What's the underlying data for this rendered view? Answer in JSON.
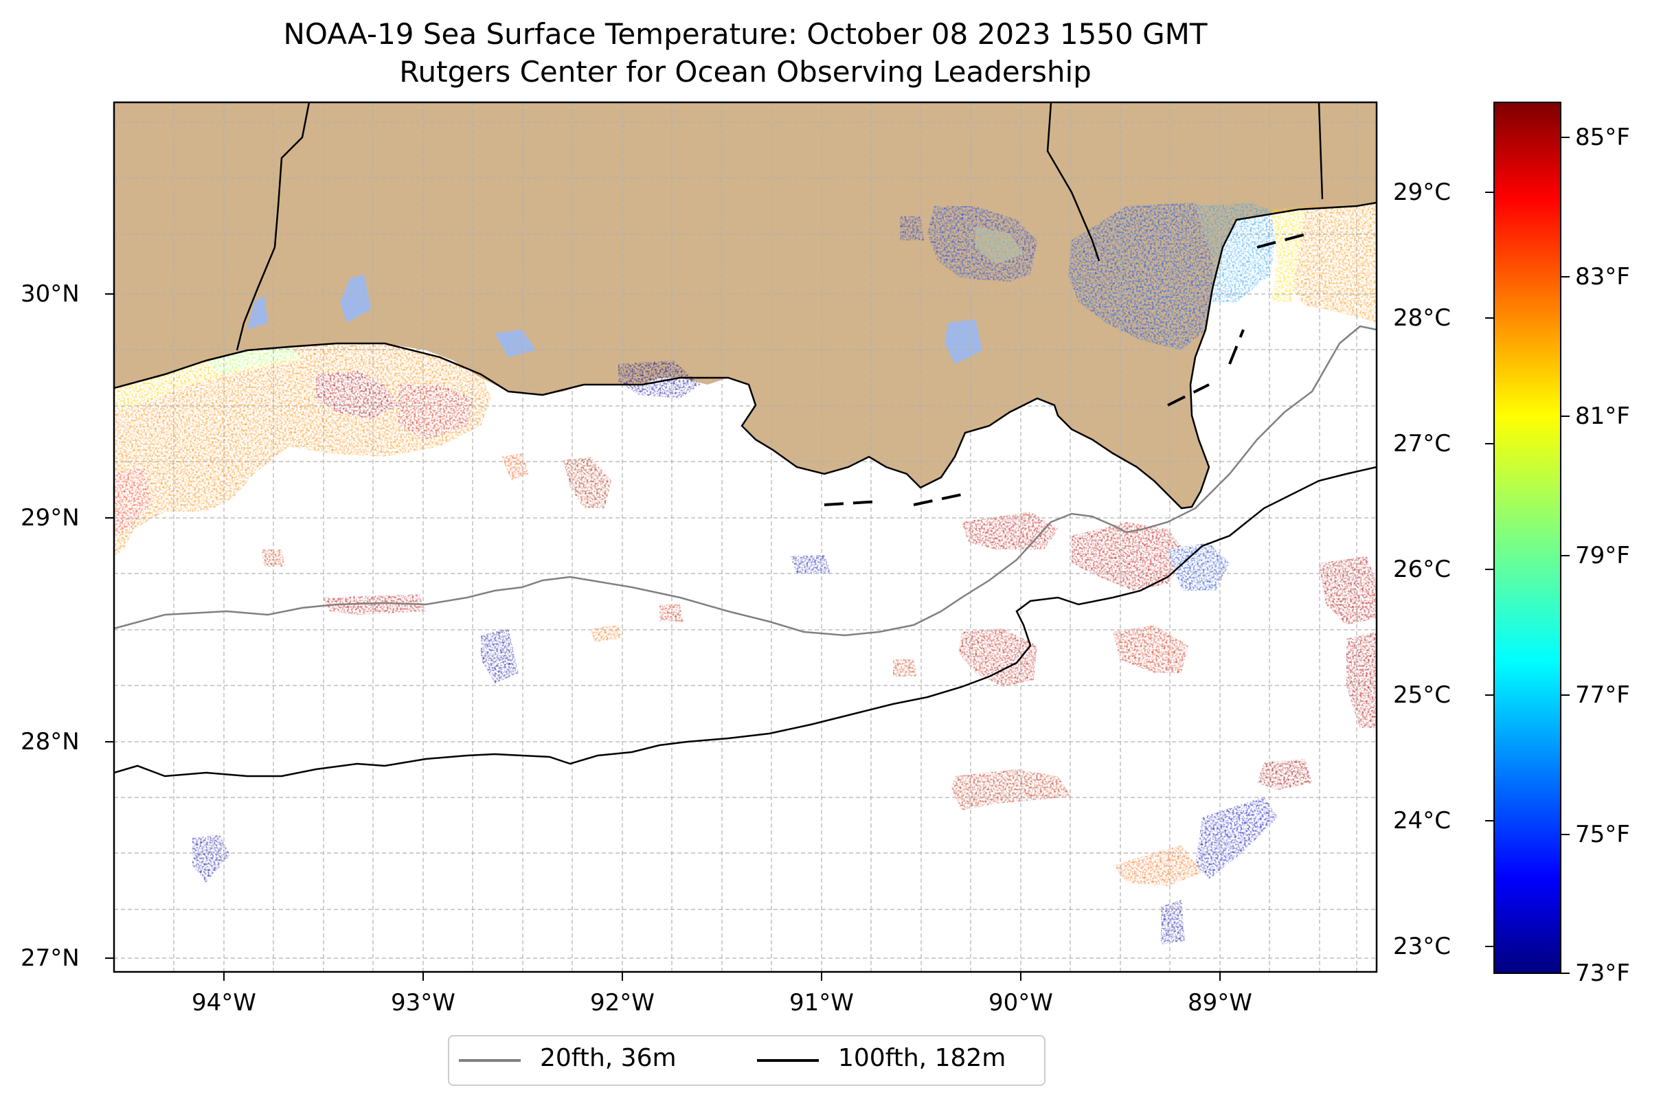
{
  "title_line1": "NOAA-19 Sea Surface Temperature: October 08 2023 1550 GMT",
  "title_line2": "Rutgers Center for Ocean Observing Leadership",
  "map": {
    "lon_ticks": [
      "94°W",
      "93°W",
      "92°W",
      "91°W",
      "90°W",
      "89°W"
    ],
    "lat_ticks": [
      "30°N",
      "29°N",
      "28°N",
      "27°N"
    ],
    "land_color": "#d1b48c",
    "missing_color": "#ffffff",
    "gridlines": true
  },
  "colorbar": {
    "colormap": "jet",
    "min_f": 73,
    "max_f": 85.5,
    "fahrenheit_ticks": [
      "85°F",
      "83°F",
      "81°F",
      "79°F",
      "77°F",
      "75°F",
      "73°F"
    ],
    "celsius_ticks": [
      "29°C",
      "28°C",
      "27°C",
      "26°C",
      "25°C",
      "24°C",
      "23°C"
    ]
  },
  "legend": {
    "items": [
      {
        "label": "20fth, 36m",
        "color": "#808080"
      },
      {
        "label": "100fth, 182m",
        "color": "#000000"
      }
    ]
  }
}
